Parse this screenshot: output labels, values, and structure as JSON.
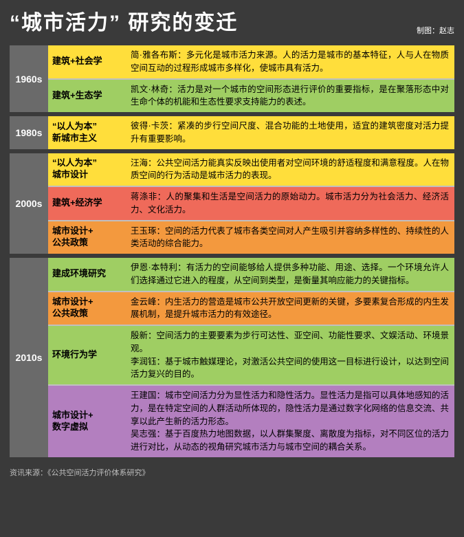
{
  "title": "“城市活力” 研究的变迁",
  "credit": "制图：赵志",
  "colors": {
    "yellow": "#ffde3b",
    "green": "#9fce63",
    "tomato": "#ef6a5a",
    "orange": "#f3993e",
    "purple": "#b37fbf",
    "gray": "#6a6a6a",
    "bg": "#3a3a3a"
  },
  "eras": [
    {
      "label": "1960s",
      "rows": [
        {
          "color": "yellow",
          "cat": "建筑+社会学",
          "desc": "简·雅各布斯：多元化是城市活力来源。人的活力是城市的基本特征，人与人在物质空间互动的过程形成城市多样化，使城市具有活力。"
        },
        {
          "color": "green",
          "cat": "建筑+生态学",
          "desc": "凯文·林奇：活力是对一个城市的空间形态进行评价的重要指标，是在聚落形态中对生命个体的机能和生态性要求支持能力的表述。"
        }
      ]
    },
    {
      "label": "1980s",
      "rows": [
        {
          "color": "yellow",
          "cat": "“以人为本”\n新城市主义",
          "desc": "彼得·卡茨：紧凑的步行空间尺度、混合功能的土地使用，适宜的建筑密度对活力提升有重要影响。"
        }
      ]
    },
    {
      "label": "2000s",
      "rows": [
        {
          "color": "yellow",
          "cat": "“以人为本”\n城市设计",
          "desc": "汪海：公共空间活力能真实反映出使用者对空间环境的舒适程度和满意程度。人在物质空间的行为活动是城市活力的表现。"
        },
        {
          "color": "tomato",
          "cat": "建筑+经济学",
          "desc": "蒋涤非：人的聚集和生活是空间活力的原始动力。城市活力分为社会活力、经济活力、文化活力。"
        },
        {
          "color": "orange",
          "cat": "城市设计+\n公共政策",
          "desc": "王玉琢：空间的活力代表了城市各类空间对人产生吸引并容纳多样性的、持续性的人类活动的综合能力。"
        }
      ]
    },
    {
      "label": "2010s",
      "rows": [
        {
          "color": "green",
          "cat": "建成环境研究",
          "desc": "伊恩·本特利：有活力的空间能够给人提供多种功能、用途、选择。一个环境允许人们选择通过它进入的程度，从空间到类型，是衡量其响应能力的关键指标。"
        },
        {
          "color": "orange",
          "cat": "城市设计+\n公共政策",
          "desc": "金云峰：内生活力的营造是城市公共开放空间更新的关键，多要素复合形成的内生发展机制，是提升城市活力的有效途径。"
        },
        {
          "color": "green",
          "cat": "环境行为学",
          "desc": "殷新：空间活力的主要要素为步行可达性、亚空间、功能性要求、文娱活动、环境景观。\n李润钰：基于城市触媒理论，对激活公共空间的使用这一目标进行设计，以达到空间活力复兴的目的。"
        },
        {
          "color": "purple",
          "cat": "城市设计+\n数字虚拟",
          "desc": "王建国：城市空间活力分为显性活力和隐性活力。显性活力是指可以具体地感知的活力，是在特定空间的人群活动所体现的，隐性活力是通过数字化网络的信息交流、共享以此产生新的活力形态。\n吴志强：基于百度热力地图数据，以人群集聚度、离散度为指标，对不同区位的活力进行对比，从动态的视角研究城市活力与城市空间的耦合关系。"
        }
      ]
    }
  ],
  "source": "资讯来源：《公共空间活力评价体系研究》"
}
